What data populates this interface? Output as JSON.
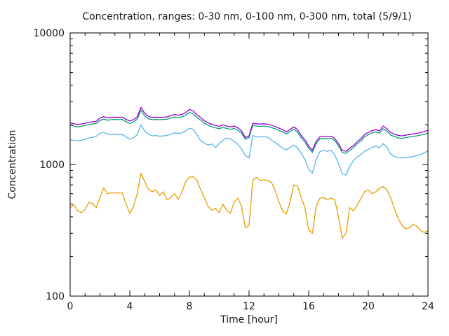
{
  "page": {
    "background": "#ffffff",
    "text_color": "#1a1a1a",
    "frame_color": "#000000"
  },
  "chart_data": {
    "type": "line",
    "title": "Concentration, ranges: 0-30 nm, 0-100 nm, 0-300 nm, total (5/9/1)",
    "xlabel": "Time [hour]",
    "ylabel": "Concentration",
    "xlim": [
      0,
      24
    ],
    "ylim": [
      100,
      10000
    ],
    "y_scale": "log",
    "grid": false,
    "legend_position": "none",
    "x_ticks_major": [
      0,
      4,
      8,
      12,
      16,
      20,
      24
    ],
    "x_minor_step": 1,
    "y_ticks_major": [
      100,
      1000,
      10000
    ],
    "y_tick_labels": [
      "100",
      "1000",
      "10000"
    ],
    "x_step": 0.25,
    "series": [
      {
        "name": "0-30 nm",
        "color": "#e69f00",
        "values": [
          470,
          495,
          445,
          430,
          455,
          515,
          505,
          470,
          560,
          665,
          600,
          610,
          605,
          610,
          605,
          500,
          425,
          480,
          600,
          860,
          740,
          650,
          620,
          640,
          580,
          620,
          540,
          560,
          600,
          545,
          620,
          740,
          800,
          810,
          760,
          650,
          560,
          480,
          450,
          465,
          430,
          500,
          450,
          425,
          520,
          555,
          480,
          330,
          345,
          760,
          800,
          755,
          765,
          755,
          730,
          640,
          520,
          445,
          420,
          520,
          700,
          690,
          560,
          470,
          320,
          300,
          480,
          555,
          560,
          540,
          555,
          540,
          400,
          275,
          300,
          470,
          445,
          490,
          550,
          620,
          640,
          600,
          620,
          660,
          680,
          640,
          560,
          460,
          390,
          345,
          325,
          330,
          350,
          340,
          315,
          305,
          315
        ]
      },
      {
        "name": "0-100 nm",
        "color": "#56b4e9",
        "values": [
          1540,
          1525,
          1510,
          1530,
          1560,
          1590,
          1610,
          1640,
          1720,
          1760,
          1700,
          1690,
          1700,
          1680,
          1690,
          1620,
          1560,
          1600,
          1680,
          2000,
          1800,
          1700,
          1650,
          1660,
          1640,
          1650,
          1660,
          1700,
          1740,
          1720,
          1740,
          1800,
          1890,
          1850,
          1690,
          1520,
          1450,
          1410,
          1430,
          1340,
          1440,
          1530,
          1590,
          1570,
          1490,
          1420,
          1310,
          1170,
          1120,
          1660,
          1620,
          1620,
          1630,
          1610,
          1530,
          1470,
          1400,
          1330,
          1290,
          1350,
          1410,
          1330,
          1220,
          1090,
          920,
          860,
          1090,
          1250,
          1280,
          1260,
          1280,
          1180,
          1020,
          850,
          830,
          960,
          1075,
          1140,
          1190,
          1260,
          1300,
          1350,
          1380,
          1340,
          1440,
          1350,
          1200,
          1150,
          1130,
          1120,
          1130,
          1140,
          1150,
          1170,
          1190,
          1225,
          1270
        ]
      },
      {
        "name": "0-300 nm",
        "color": "#009e73",
        "values": [
          2000,
          1960,
          1930,
          1950,
          1980,
          2010,
          2030,
          2050,
          2160,
          2215,
          2170,
          2190,
          2200,
          2190,
          2200,
          2110,
          2050,
          2100,
          2210,
          2590,
          2340,
          2225,
          2190,
          2200,
          2190,
          2200,
          2210,
          2255,
          2300,
          2275,
          2300,
          2375,
          2480,
          2430,
          2280,
          2180,
          2060,
          1990,
          1935,
          1900,
          1870,
          1915,
          1880,
          1850,
          1880,
          1820,
          1730,
          1555,
          1605,
          1990,
          1960,
          1950,
          1960,
          1940,
          1910,
          1870,
          1815,
          1770,
          1705,
          1780,
          1855,
          1765,
          1595,
          1480,
          1330,
          1235,
          1445,
          1560,
          1580,
          1570,
          1580,
          1520,
          1385,
          1235,
          1215,
          1280,
          1340,
          1435,
          1510,
          1625,
          1680,
          1740,
          1770,
          1730,
          1870,
          1790,
          1675,
          1630,
          1595,
          1580,
          1600,
          1620,
          1635,
          1650,
          1675,
          1700,
          1730
        ]
      },
      {
        "name": "total",
        "color": "#9400d3",
        "values": [
          2075,
          2040,
          2010,
          2030,
          2060,
          2090,
          2110,
          2130,
          2250,
          2310,
          2260,
          2280,
          2290,
          2280,
          2290,
          2200,
          2140,
          2190,
          2300,
          2720,
          2450,
          2320,
          2280,
          2290,
          2280,
          2290,
          2300,
          2350,
          2400,
          2370,
          2400,
          2480,
          2620,
          2560,
          2390,
          2280,
          2150,
          2075,
          2020,
          1980,
          1950,
          2000,
          1960,
          1930,
          1960,
          1900,
          1800,
          1600,
          1650,
          2060,
          2040,
          2030,
          2040,
          2020,
          1990,
          1945,
          1890,
          1840,
          1770,
          1850,
          1930,
          1840,
          1660,
          1540,
          1380,
          1280,
          1500,
          1620,
          1640,
          1630,
          1640,
          1580,
          1440,
          1280,
          1260,
          1330,
          1390,
          1490,
          1570,
          1690,
          1750,
          1810,
          1840,
          1800,
          1960,
          1870,
          1750,
          1700,
          1665,
          1650,
          1670,
          1690,
          1705,
          1725,
          1750,
          1780,
          1815
        ]
      }
    ]
  }
}
